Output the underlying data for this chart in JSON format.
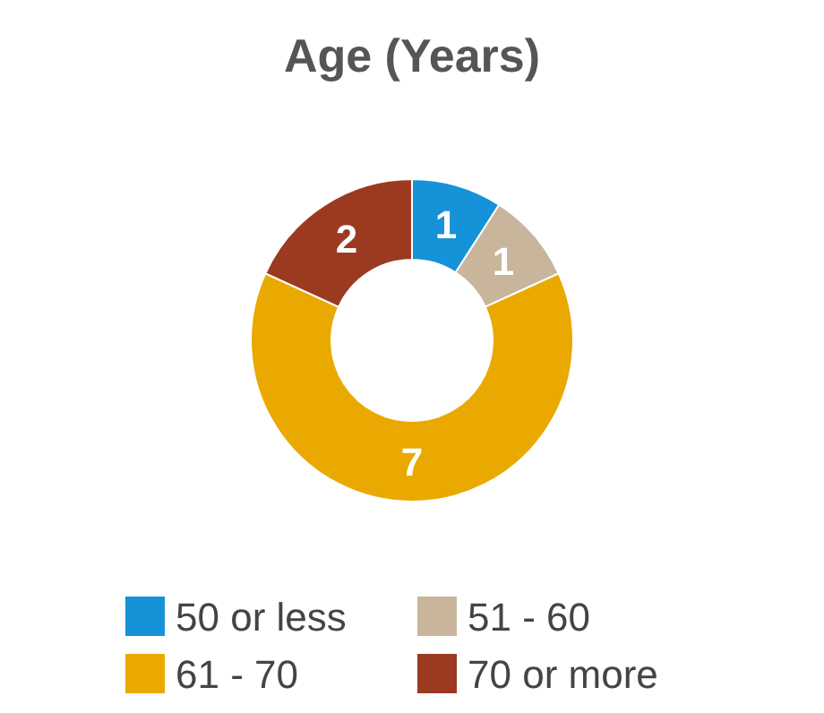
{
  "chart_data": {
    "type": "donut",
    "title": "Age (Years)",
    "categories": [
      "50 or less",
      "51 - 60",
      "61 - 70",
      "70 or more"
    ],
    "values": [
      1,
      1,
      7,
      2
    ],
    "colors": [
      "#1592d8",
      "#c8b59b",
      "#eaa900",
      "#9b3a20"
    ],
    "data_labels": true,
    "legend": "bottom"
  }
}
